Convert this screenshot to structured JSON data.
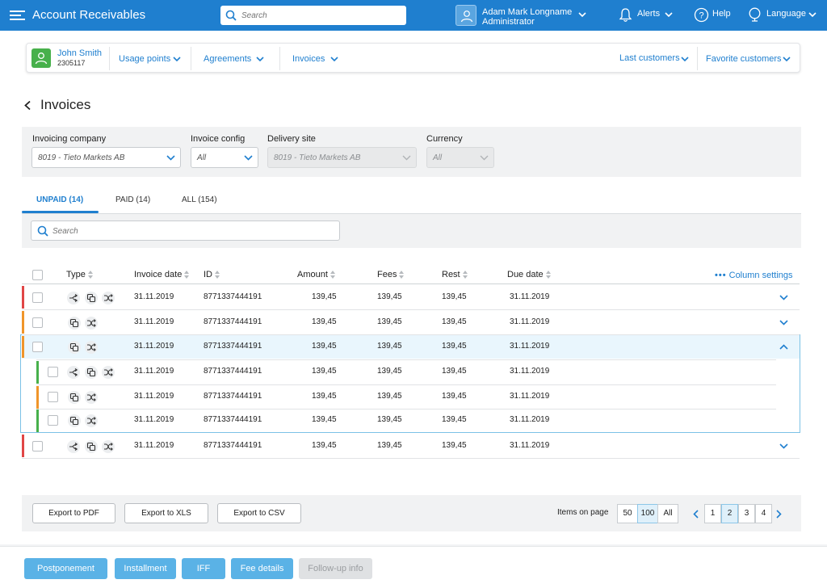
{
  "app": {
    "title": "Account Receivables",
    "search_placeholder": "Search"
  },
  "user": {
    "name": "Adam Mark Longname",
    "role": "Administrator"
  },
  "topnav": {
    "alerts": "Alerts",
    "help": "Help",
    "language": "Language"
  },
  "customer": {
    "name": "John Smith",
    "number": "2305117"
  },
  "customer_nav": {
    "usage_points": "Usage points",
    "agreements": "Agreements",
    "invoices": "Invoices",
    "last_customers": "Last customers",
    "favorite_customers": "Favorite customers"
  },
  "page": {
    "title": "Invoices"
  },
  "filters": {
    "invoicing_company": {
      "label": "Invoicing company",
      "value": "8019 - Tieto Markets AB"
    },
    "invoice_config": {
      "label": "Invoice config",
      "value": "All"
    },
    "delivery_site": {
      "label": "Delivery site",
      "value": "8019 - Tieto Markets AB"
    },
    "currency": {
      "label": "Currency",
      "value": "All"
    }
  },
  "tabs": [
    {
      "label": "UNPAID (14)",
      "active": true
    },
    {
      "label": "PAID (14)",
      "active": false
    },
    {
      "label": "ALL (154)",
      "active": false
    }
  ],
  "table_search": {
    "placeholder": "Search"
  },
  "table": {
    "columns": {
      "type": "Type",
      "invoice_date": "Invoice date",
      "id": "ID",
      "amount": "Amount",
      "fees": "Fees",
      "rest": "Rest",
      "due_date": "Due date"
    },
    "column_settings": "Column settings",
    "rows": [
      {
        "status": "red",
        "icons": [
          "split",
          "copy",
          "shuffle"
        ],
        "invoice_date": "31.11.2019",
        "id": "8771337444191",
        "amount": "139,45",
        "fees": "139,45",
        "rest": "139,45",
        "due_date": "31.11.2019",
        "chevron": "down"
      },
      {
        "status": "orange",
        "icons": [
          "copy",
          "shuffle"
        ],
        "invoice_date": "31.11.2019",
        "id": "8771337444191",
        "amount": "139,45",
        "fees": "139,45",
        "rest": "139,45",
        "due_date": "31.11.2019",
        "chevron": "down"
      },
      {
        "status": "orange",
        "icons": [
          "copy",
          "shuffle"
        ],
        "invoice_date": "31.11.2019",
        "id": "8771337444191",
        "amount": "139,45",
        "fees": "139,45",
        "rest": "139,45",
        "due_date": "31.11.2019",
        "chevron": "up",
        "expanded": true
      },
      {
        "status": "red",
        "icons": [
          "split",
          "copy",
          "shuffle"
        ],
        "invoice_date": "31.11.2019",
        "id": "8771337444191",
        "amount": "139,45",
        "fees": "139,45",
        "rest": "139,45",
        "due_date": "31.11.2019",
        "chevron": "down"
      }
    ],
    "sub_rows": [
      {
        "status": "green",
        "icons": [
          "split",
          "copy",
          "shuffle"
        ],
        "invoice_date": "31.11.2019",
        "id": "8771337444191",
        "amount": "139,45",
        "fees": "139,45",
        "rest": "139,45",
        "due_date": "31.11.2019"
      },
      {
        "status": "orange",
        "icons": [
          "copy",
          "shuffle"
        ],
        "invoice_date": "31.11.2019",
        "id": "8771337444191",
        "amount": "139,45",
        "fees": "139,45",
        "rest": "139,45",
        "due_date": "31.11.2019"
      },
      {
        "status": "green",
        "icons": [
          "copy",
          "shuffle"
        ],
        "invoice_date": "31.11.2019",
        "id": "8771337444191",
        "amount": "139,45",
        "fees": "139,45",
        "rest": "139,45",
        "due_date": "31.11.2019"
      }
    ]
  },
  "export": {
    "pdf": "Export to PDF",
    "xls": "Export to XLS",
    "csv": "Export to CSV"
  },
  "pagination": {
    "items_label": "Items on page",
    "sizes": [
      "50",
      "100",
      "All"
    ],
    "selected_size": "100",
    "pages": [
      "1",
      "2",
      "3",
      "4"
    ],
    "current_page": "2"
  },
  "actions": {
    "postponement": "Postponement",
    "installment": "Installment",
    "iff": "IFF",
    "fee_details": "Fee details",
    "follow_up": "Follow-up info"
  },
  "colors": {
    "primary": "#1f7fcf",
    "red": "#e04646",
    "orange": "#f0952a",
    "green": "#47b04b",
    "action": "#5ab2e6"
  }
}
